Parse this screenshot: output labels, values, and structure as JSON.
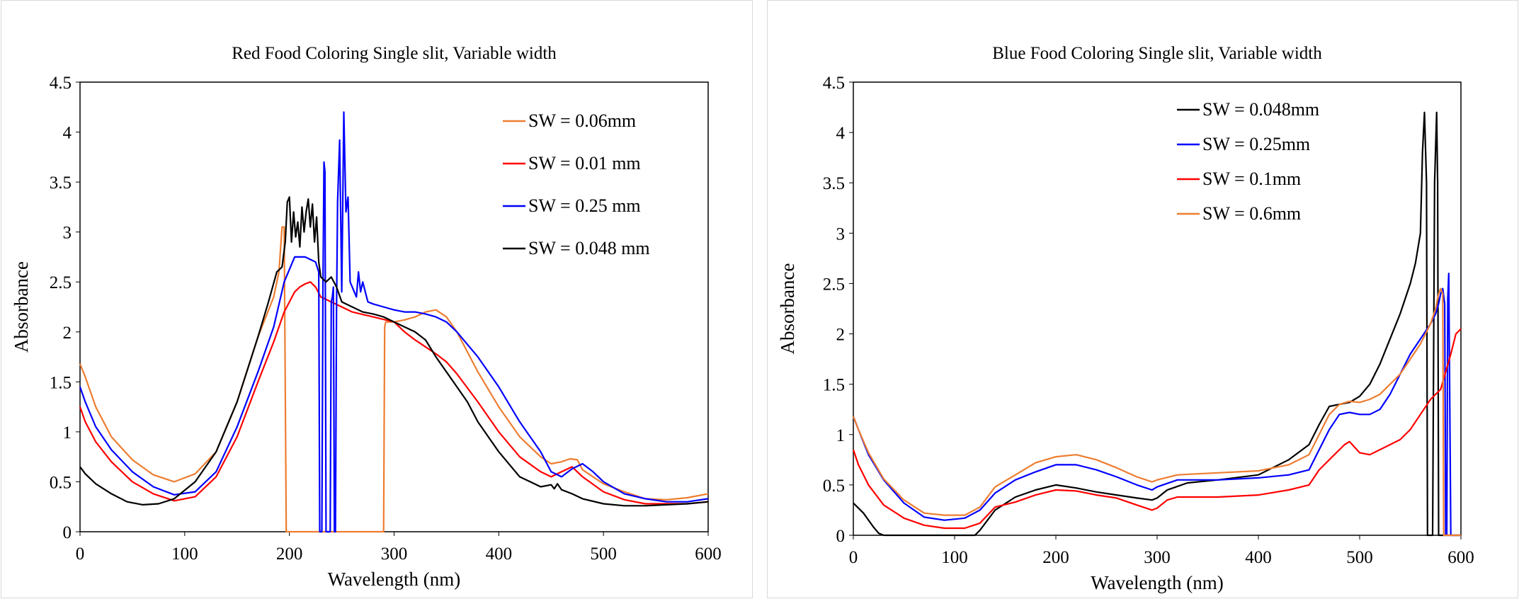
{
  "chart_data": [
    {
      "type": "line",
      "title": "Red Food Coloring Single slit, Variable width",
      "xlabel": "Wavelength (nm)",
      "ylabel": "Absorbance",
      "xlim": [
        0,
        600
      ],
      "ylim": [
        0,
        4.5
      ],
      "xticks": [
        0,
        100,
        200,
        300,
        400,
        500,
        600
      ],
      "yticks": [
        0,
        0.5,
        1,
        1.5,
        2,
        2.5,
        3,
        3.5,
        4,
        4.5
      ],
      "grid": false,
      "legend_position": "top-right",
      "series": [
        {
          "name": "SW = 0.06mm",
          "color": "#ED7D31",
          "x": [
            0,
            5,
            15,
            30,
            50,
            70,
            90,
            110,
            130,
            150,
            170,
            185,
            190,
            193,
            195,
            195.5,
            197,
            198,
            290,
            291,
            292,
            300,
            310,
            320,
            330,
            340,
            350,
            360,
            370,
            380,
            400,
            420,
            440,
            450,
            460,
            468,
            475,
            480,
            490,
            500,
            520,
            540,
            560,
            580,
            600
          ],
          "y": [
            1.68,
            1.55,
            1.25,
            0.95,
            0.72,
            0.57,
            0.5,
            0.58,
            0.8,
            1.3,
            1.95,
            2.35,
            2.6,
            3.05,
            3.05,
            2.3,
            0,
            0,
            0,
            2.05,
            2.1,
            2.1,
            2.12,
            2.15,
            2.2,
            2.22,
            2.15,
            2.0,
            1.8,
            1.6,
            1.25,
            0.95,
            0.75,
            0.68,
            0.7,
            0.73,
            0.72,
            0.62,
            0.55,
            0.48,
            0.4,
            0.33,
            0.32,
            0.34,
            0.38
          ]
        },
        {
          "name": "SW = 0.01 mm",
          "color": "#FF0000",
          "x": [
            0,
            5,
            15,
            30,
            50,
            70,
            90,
            110,
            130,
            150,
            170,
            185,
            195,
            200,
            205,
            210,
            215,
            220,
            225,
            230,
            240,
            250,
            260,
            280,
            300,
            310,
            320,
            330,
            340,
            350,
            360,
            380,
            400,
            420,
            440,
            450,
            460,
            470,
            480,
            500,
            520,
            540,
            560,
            580,
            600
          ],
          "y": [
            1.25,
            1.1,
            0.9,
            0.7,
            0.5,
            0.38,
            0.31,
            0.35,
            0.55,
            0.95,
            1.5,
            1.9,
            2.2,
            2.3,
            2.4,
            2.45,
            2.48,
            2.5,
            2.45,
            2.35,
            2.3,
            2.25,
            2.2,
            2.15,
            2.1,
            2.0,
            1.92,
            1.85,
            1.78,
            1.7,
            1.58,
            1.3,
            1.0,
            0.75,
            0.6,
            0.55,
            0.6,
            0.65,
            0.55,
            0.4,
            0.32,
            0.28,
            0.28,
            0.28,
            0.3
          ]
        },
        {
          "name": "SW = 0.25 mm",
          "color": "#0000FF",
          "x": [
            0,
            5,
            15,
            30,
            50,
            70,
            90,
            110,
            130,
            150,
            170,
            185,
            195,
            205,
            215,
            225,
            228,
            229,
            229.5,
            231,
            232,
            233,
            234,
            235,
            236,
            237,
            238,
            239,
            240,
            241,
            242,
            243,
            244,
            245,
            246,
            248,
            250,
            252,
            254,
            256,
            258,
            260,
            262,
            264,
            266,
            268,
            270,
            275,
            280,
            290,
            300,
            310,
            320,
            330,
            340,
            350,
            360,
            380,
            400,
            420,
            440,
            450,
            460,
            470,
            480,
            490,
            500,
            520,
            540,
            560,
            580,
            600
          ],
          "y": [
            1.45,
            1.3,
            1.05,
            0.82,
            0.6,
            0.45,
            0.37,
            0.4,
            0.6,
            1.05,
            1.6,
            2.05,
            2.5,
            2.75,
            2.75,
            2.7,
            2.6,
            0,
            0,
            0,
            2.4,
            3.7,
            3.6,
            0,
            0,
            0,
            0,
            0,
            2.3,
            2.35,
            2.45,
            0,
            0,
            2.2,
            3.3,
            3.92,
            2.4,
            4.2,
            3.2,
            3.35,
            2.5,
            2.45,
            2.4,
            2.35,
            2.6,
            2.4,
            2.5,
            2.3,
            2.28,
            2.25,
            2.22,
            2.2,
            2.2,
            2.18,
            2.15,
            2.1,
            2.0,
            1.75,
            1.45,
            1.1,
            0.8,
            0.6,
            0.55,
            0.63,
            0.68,
            0.6,
            0.5,
            0.38,
            0.33,
            0.3,
            0.3,
            0.33
          ]
        },
        {
          "name": "SW = 0.048 mm",
          "color": "#000000",
          "x": [
            0,
            5,
            15,
            30,
            45,
            60,
            75,
            90,
            110,
            130,
            150,
            170,
            180,
            188,
            193,
            196,
            198,
            200,
            202,
            204,
            206,
            208,
            210,
            212,
            214,
            216,
            218,
            220,
            222,
            224,
            226,
            228,
            230,
            235,
            240,
            245,
            250,
            260,
            270,
            280,
            290,
            300,
            310,
            320,
            330,
            340,
            350,
            360,
            370,
            380,
            400,
            420,
            440,
            450,
            453,
            456,
            460,
            470,
            480,
            500,
            520,
            540,
            560,
            580,
            600
          ],
          "y": [
            0.65,
            0.58,
            0.48,
            0.38,
            0.3,
            0.27,
            0.28,
            0.33,
            0.5,
            0.8,
            1.3,
            1.95,
            2.3,
            2.6,
            2.65,
            2.9,
            3.3,
            3.35,
            2.9,
            3.2,
            2.95,
            3.1,
            2.85,
            3.25,
            3.0,
            3.2,
            3.33,
            3.05,
            3.28,
            2.9,
            3.15,
            2.7,
            2.55,
            2.5,
            2.55,
            2.45,
            2.3,
            2.25,
            2.2,
            2.18,
            2.15,
            2.1,
            2.05,
            2.0,
            1.92,
            1.75,
            1.6,
            1.45,
            1.3,
            1.1,
            0.8,
            0.55,
            0.45,
            0.47,
            0.43,
            0.48,
            0.42,
            0.38,
            0.33,
            0.28,
            0.26,
            0.26,
            0.27,
            0.28,
            0.3
          ]
        }
      ]
    },
    {
      "type": "line",
      "title": "Blue Food Coloring Single slit, Variable width",
      "xlabel": "Wavelength (nm)",
      "ylabel": "Absorbance",
      "xlim": [
        0,
        600
      ],
      "ylim": [
        0,
        4.5
      ],
      "xticks": [
        0,
        100,
        200,
        300,
        400,
        500,
        600
      ],
      "yticks": [
        0,
        0.5,
        1,
        1.5,
        2,
        2.5,
        3,
        3.5,
        4,
        4.5
      ],
      "grid": false,
      "legend_position": "top-right",
      "series": [
        {
          "name": "SW = 0.048mm",
          "color": "#000000",
          "x": [
            0,
            10,
            20,
            25,
            30,
            120,
            125,
            140,
            160,
            180,
            200,
            220,
            240,
            260,
            280,
            295,
            300,
            310,
            330,
            360,
            400,
            430,
            450,
            460,
            470,
            480,
            490,
            500,
            510,
            520,
            530,
            540,
            550,
            555,
            560,
            562,
            564,
            566,
            567,
            568,
            570,
            572,
            574,
            576,
            577,
            578,
            580,
            600
          ],
          "y": [
            0.32,
            0.22,
            0.08,
            0.02,
            0,
            0,
            0.05,
            0.25,
            0.38,
            0.45,
            0.5,
            0.47,
            0.43,
            0.4,
            0.37,
            0.35,
            0.37,
            0.45,
            0.52,
            0.55,
            0.6,
            0.75,
            0.9,
            1.1,
            1.28,
            1.3,
            1.32,
            1.38,
            1.5,
            1.7,
            1.95,
            2.2,
            2.5,
            2.7,
            3.0,
            3.8,
            4.2,
            3.5,
            0,
            0,
            0,
            0,
            3.5,
            4.2,
            3.5,
            0,
            0,
            0
          ]
        },
        {
          "name": "SW = 0.25mm",
          "color": "#0000FF",
          "x": [
            0,
            5,
            15,
            30,
            50,
            70,
            90,
            110,
            125,
            140,
            160,
            180,
            200,
            220,
            240,
            260,
            280,
            295,
            300,
            320,
            340,
            360,
            400,
            430,
            450,
            460,
            470,
            480,
            490,
            500,
            510,
            520,
            530,
            540,
            550,
            560,
            570,
            575,
            578,
            580,
            582,
            584,
            585,
            586,
            587,
            588,
            590,
            600
          ],
          "y": [
            1.18,
            1.05,
            0.8,
            0.55,
            0.32,
            0.18,
            0.15,
            0.17,
            0.25,
            0.42,
            0.55,
            0.63,
            0.7,
            0.7,
            0.65,
            0.58,
            0.5,
            0.45,
            0.48,
            0.55,
            0.55,
            0.55,
            0.57,
            0.6,
            0.65,
            0.85,
            1.05,
            1.2,
            1.22,
            1.2,
            1.2,
            1.25,
            1.4,
            1.6,
            1.8,
            1.95,
            2.1,
            2.2,
            2.3,
            2.4,
            2.45,
            2.3,
            0,
            0,
            2.35,
            2.6,
            0,
            0
          ]
        },
        {
          "name": "SW = 0.1mm",
          "color": "#FF0000",
          "x": [
            0,
            5,
            15,
            30,
            50,
            70,
            90,
            110,
            125,
            140,
            160,
            180,
            200,
            220,
            240,
            260,
            280,
            295,
            300,
            310,
            320,
            340,
            360,
            400,
            430,
            450,
            460,
            470,
            480,
            485,
            490,
            500,
            510,
            520,
            530,
            540,
            550,
            560,
            570,
            580,
            590,
            595,
            600
          ],
          "y": [
            0.85,
            0.7,
            0.5,
            0.3,
            0.17,
            0.1,
            0.07,
            0.07,
            0.12,
            0.28,
            0.33,
            0.4,
            0.45,
            0.44,
            0.4,
            0.37,
            0.3,
            0.25,
            0.27,
            0.35,
            0.38,
            0.38,
            0.38,
            0.4,
            0.45,
            0.5,
            0.65,
            0.75,
            0.85,
            0.9,
            0.93,
            0.82,
            0.8,
            0.85,
            0.9,
            0.95,
            1.05,
            1.2,
            1.35,
            1.45,
            1.8,
            2.0,
            2.05
          ]
        },
        {
          "name": "SW = 0.6mm",
          "color": "#ED7D31",
          "x": [
            0,
            5,
            15,
            30,
            50,
            70,
            90,
            110,
            125,
            140,
            160,
            180,
            200,
            220,
            240,
            260,
            280,
            295,
            300,
            320,
            340,
            360,
            400,
            430,
            450,
            460,
            470,
            480,
            490,
            500,
            510,
            520,
            530,
            540,
            550,
            560,
            570,
            575,
            578,
            580,
            582,
            583,
            600
          ],
          "y": [
            1.18,
            1.05,
            0.82,
            0.56,
            0.35,
            0.22,
            0.2,
            0.2,
            0.28,
            0.48,
            0.6,
            0.72,
            0.78,
            0.8,
            0.75,
            0.67,
            0.58,
            0.53,
            0.55,
            0.6,
            0.61,
            0.62,
            0.64,
            0.7,
            0.8,
            1.0,
            1.2,
            1.3,
            1.33,
            1.32,
            1.35,
            1.4,
            1.5,
            1.6,
            1.75,
            1.9,
            2.1,
            2.25,
            2.4,
            2.45,
            2.4,
            0,
            0
          ]
        }
      ]
    }
  ]
}
